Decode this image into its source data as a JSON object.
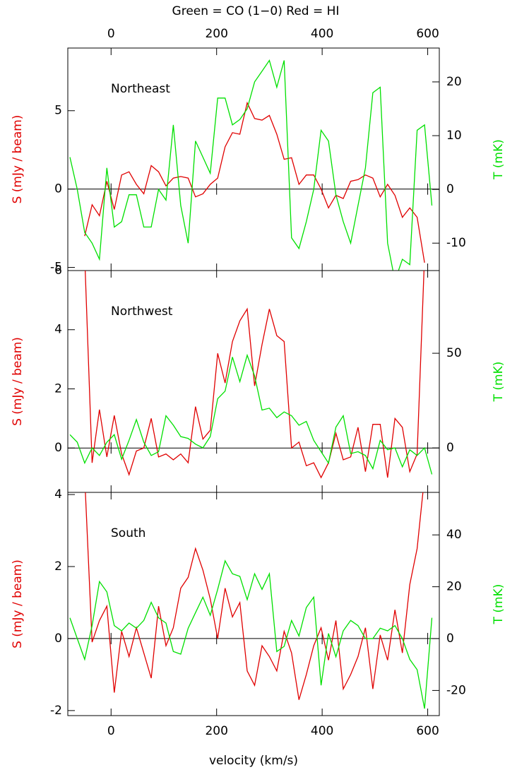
{
  "title": "Green = CO (1−0) Red = HI",
  "xlabel": "velocity (km/s)",
  "chart_data": [
    {
      "type": "line",
      "label": "Northeast",
      "ylabel": "S (mJy / beam)",
      "y2label": "T (mK)",
      "x": [
        -78,
        -64,
        -50,
        -36,
        -22,
        -8,
        6,
        20,
        34,
        48,
        62,
        76,
        90,
        104,
        118,
        132,
        146,
        160,
        174,
        188,
        202,
        216,
        230,
        244,
        258,
        272,
        286,
        300,
        314,
        328,
        342,
        356,
        370,
        384,
        398,
        412,
        426,
        440,
        454,
        468,
        482,
        496,
        510,
        524,
        538,
        552,
        566,
        580,
        594,
        608
      ],
      "xlim": [
        -82,
        622
      ],
      "xticks": [
        0,
        200,
        400,
        600
      ],
      "ylim": [
        -5.2,
        9
      ],
      "yticks": [
        -5,
        0,
        5
      ],
      "y2lim": [
        -15.1,
        26.3
      ],
      "y2ticks": [
        -10,
        0,
        10,
        20
      ],
      "series": [
        {
          "name": "HI",
          "color": "#e00000",
          "axis": "y",
          "values": [
            null,
            null,
            -3.0,
            -1.0,
            -1.7,
            0.5,
            -1.3,
            0.9,
            1.1,
            0.3,
            -0.3,
            1.5,
            1.1,
            0.2,
            0.7,
            0.8,
            0.7,
            -0.5,
            -0.3,
            0.3,
            0.7,
            2.7,
            3.6,
            3.5,
            5.5,
            4.5,
            4.4,
            4.7,
            3.5,
            1.9,
            2.0,
            0.3,
            0.9,
            0.9,
            0.0,
            -1.2,
            -0.4,
            -0.6,
            0.5,
            0.6,
            0.9,
            0.7,
            -0.5,
            0.3,
            -0.4,
            -1.8,
            -1.2,
            -1.8,
            -4.7,
            null
          ]
        },
        {
          "name": "CO (1−0)",
          "color": "#00e000",
          "axis": "y2",
          "values": [
            6,
            0,
            -8,
            -10,
            -13,
            4,
            -7,
            -6,
            -1,
            -1,
            -7,
            -7,
            0,
            -2,
            12,
            -3,
            -10,
            9,
            6,
            3,
            17,
            17,
            12,
            13,
            15,
            20,
            22,
            24,
            19,
            24,
            -9,
            -11,
            -6,
            0,
            11,
            9,
            -1,
            -6,
            -10,
            -3,
            4,
            18,
            19,
            -10,
            -17,
            -13,
            -14,
            11,
            12,
            -3
          ]
        }
      ]
    },
    {
      "type": "line",
      "label": "Northwest",
      "ylabel": "S (mJy / beam)",
      "y2label": "T (mK)",
      "x": [
        -78,
        -64,
        -50,
        -36,
        -22,
        -8,
        6,
        20,
        34,
        48,
        62,
        76,
        90,
        104,
        118,
        132,
        146,
        160,
        174,
        188,
        202,
        216,
        230,
        244,
        258,
        272,
        286,
        300,
        314,
        328,
        342,
        356,
        370,
        384,
        398,
        412,
        426,
        440,
        454,
        468,
        482,
        496,
        510,
        524,
        538,
        552,
        566,
        580,
        594,
        608
      ],
      "xlim": [
        -82,
        622
      ],
      "xticks": [
        0,
        200,
        400,
        600
      ],
      "ylim": [
        -1.5,
        6
      ],
      "yticks": [
        0,
        2,
        4,
        6
      ],
      "y2lim": [
        -23.5,
        93.7
      ],
      "y2ticks": [
        0,
        50
      ],
      "series": [
        {
          "name": "HI",
          "color": "#e00000",
          "axis": "y",
          "values": [
            null,
            null,
            6.5,
            -0.5,
            1.3,
            -0.3,
            1.1,
            -0.2,
            -0.9,
            -0.1,
            0.0,
            1.0,
            -0.3,
            -0.2,
            -0.4,
            -0.2,
            -0.5,
            1.4,
            0.3,
            0.6,
            3.2,
            2.2,
            3.6,
            4.3,
            4.7,
            2.1,
            3.5,
            4.7,
            3.8,
            3.6,
            0.0,
            0.2,
            -0.6,
            -0.5,
            -1.0,
            -0.5,
            0.5,
            -0.4,
            -0.3,
            0.7,
            -0.8,
            0.8,
            0.8,
            -1.0,
            1.0,
            0.7,
            -0.8,
            -0.2,
            6.5,
            null
          ]
        },
        {
          "name": "CO (1−0)",
          "color": "#00e000",
          "axis": "y2",
          "values": [
            7,
            3,
            -8,
            0,
            -4,
            3,
            7,
            -6,
            4,
            15,
            3,
            -4,
            -2,
            17,
            12,
            6,
            5,
            2,
            0,
            6,
            26,
            30,
            48,
            35,
            49,
            38,
            20,
            21,
            16,
            19,
            17,
            12,
            14,
            4,
            -2,
            -8,
            11,
            17,
            -3,
            -2,
            -4,
            -11,
            4,
            -1,
            0,
            -10,
            -1,
            -4,
            0,
            -14
          ]
        }
      ]
    },
    {
      "type": "line",
      "label": "South",
      "ylabel": "S (mJy / beam)",
      "y2label": "T (mK)",
      "x": [
        -78,
        -64,
        -50,
        -36,
        -22,
        -8,
        6,
        20,
        34,
        48,
        62,
        76,
        90,
        104,
        118,
        132,
        146,
        160,
        174,
        188,
        202,
        216,
        230,
        244,
        258,
        272,
        286,
        300,
        314,
        328,
        342,
        356,
        370,
        384,
        398,
        412,
        426,
        440,
        454,
        468,
        482,
        496,
        510,
        524,
        538,
        552,
        566,
        580,
        594,
        608
      ],
      "xlim": [
        -82,
        622
      ],
      "xticks": [
        0,
        200,
        400,
        600
      ],
      "ylim": [
        -2.14,
        4.06
      ],
      "yticks": [
        -2,
        0,
        2,
        4
      ],
      "y2lim": [
        -29.7,
        56.4
      ],
      "y2ticks": [
        -20,
        0,
        20,
        40
      ],
      "series": [
        {
          "name": "HI",
          "color": "#e00000",
          "axis": "y",
          "values": [
            null,
            null,
            4.5,
            -0.1,
            0.5,
            0.9,
            -1.5,
            0.2,
            -0.5,
            0.3,
            -0.4,
            -1.1,
            0.9,
            -0.2,
            0.3,
            1.4,
            1.7,
            2.5,
            1.9,
            1.1,
            0.0,
            1.4,
            0.6,
            1.0,
            -0.9,
            -1.3,
            -0.2,
            -0.5,
            -0.9,
            0.2,
            -0.4,
            -1.7,
            -1.0,
            -0.2,
            0.3,
            -0.6,
            0.5,
            -1.4,
            -1.0,
            -0.5,
            0.3,
            -1.4,
            0.1,
            -0.6,
            0.8,
            -0.4,
            1.5,
            2.5,
            4.5,
            null
          ]
        },
        {
          "name": "CO (1−0)",
          "color": "#00e000",
          "axis": "y2",
          "values": [
            8,
            0,
            -8,
            5,
            22,
            18,
            5,
            3,
            6,
            4,
            7,
            14,
            8,
            6,
            -5,
            -6,
            4,
            10,
            16,
            9,
            19,
            30,
            25,
            24,
            15,
            25,
            19,
            25,
            -5,
            -3,
            7,
            1,
            12,
            16,
            -18,
            2,
            -7,
            3,
            7,
            5,
            0,
            0,
            4,
            3,
            5,
            0,
            -8,
            -12,
            -27,
            8
          ]
        }
      ]
    }
  ]
}
